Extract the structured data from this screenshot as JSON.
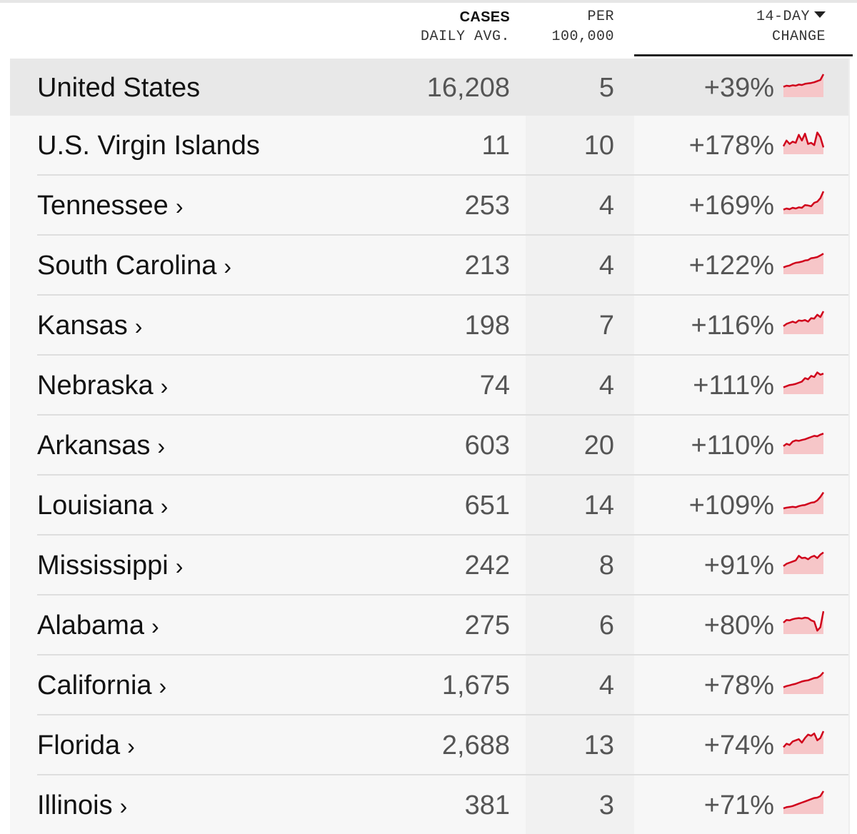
{
  "header": {
    "cases_line1": "CASES",
    "cases_line2": "DAILY AVG.",
    "per_line1": "PER",
    "per_line2": "100,000",
    "change_line1": "14-DAY",
    "change_line2": "CHANGE",
    "sort_icon": "caret-down-icon"
  },
  "colors": {
    "trend_line": "#d0021b",
    "trend_fill": "#f6c6c8",
    "highlight_row": "#e8e8e8",
    "table_bg": "#f7f7f7"
  },
  "rows": [
    {
      "name": "United States",
      "chevron": "",
      "cases": "16,208",
      "per": "5",
      "change": "+39%",
      "trend": [
        0.45,
        0.5,
        0.48,
        0.52,
        0.5,
        0.55,
        0.53,
        0.58,
        0.6,
        0.62,
        0.65,
        0.7,
        0.75,
        1.0
      ]
    },
    {
      "name": "U.S. Virgin Islands",
      "chevron": "",
      "cases": "11",
      "per": "10",
      "change": "+178%",
      "trend": [
        0.35,
        0.6,
        0.45,
        0.55,
        0.5,
        0.85,
        0.6,
        0.9,
        0.45,
        0.5,
        0.4,
        0.95,
        0.75,
        0.3
      ]
    },
    {
      "name": "Tennessee",
      "chevron": "›",
      "cases": "253",
      "per": "4",
      "change": "+169%",
      "trend": [
        0.2,
        0.25,
        0.22,
        0.28,
        0.25,
        0.3,
        0.28,
        0.4,
        0.38,
        0.35,
        0.5,
        0.55,
        0.7,
        1.0
      ]
    },
    {
      "name": "South Carolina",
      "chevron": "›",
      "cases": "213",
      "per": "4",
      "change": "+122%",
      "trend": [
        0.3,
        0.35,
        0.38,
        0.45,
        0.5,
        0.52,
        0.55,
        0.6,
        0.62,
        0.7,
        0.72,
        0.75,
        0.82,
        0.9
      ]
    },
    {
      "name": "Kansas",
      "chevron": "›",
      "cases": "198",
      "per": "7",
      "change": "+116%",
      "trend": [
        0.35,
        0.45,
        0.5,
        0.55,
        0.5,
        0.6,
        0.58,
        0.62,
        0.55,
        0.7,
        0.68,
        0.85,
        0.75,
        1.0
      ]
    },
    {
      "name": "Nebraska",
      "chevron": "›",
      "cases": "74",
      "per": "4",
      "change": "+111%",
      "trend": [
        0.3,
        0.35,
        0.4,
        0.42,
        0.45,
        0.5,
        0.55,
        0.7,
        0.65,
        0.8,
        0.75,
        0.95,
        0.85,
        0.9
      ]
    },
    {
      "name": "Arkansas",
      "chevron": "›",
      "cases": "603",
      "per": "20",
      "change": "+110%",
      "trend": [
        0.35,
        0.45,
        0.4,
        0.55,
        0.6,
        0.58,
        0.62,
        0.65,
        0.7,
        0.75,
        0.8,
        0.78,
        0.85,
        0.9
      ]
    },
    {
      "name": "Louisiana",
      "chevron": "›",
      "cases": "651",
      "per": "14",
      "change": "+109%",
      "trend": [
        0.25,
        0.28,
        0.3,
        0.32,
        0.3,
        0.35,
        0.38,
        0.4,
        0.45,
        0.5,
        0.52,
        0.6,
        0.75,
        0.95
      ]
    },
    {
      "name": "Mississippi",
      "chevron": "›",
      "cases": "242",
      "per": "8",
      "change": "+91%",
      "trend": [
        0.35,
        0.45,
        0.5,
        0.55,
        0.6,
        0.8,
        0.7,
        0.72,
        0.65,
        0.75,
        0.8,
        0.7,
        0.85,
        0.95
      ]
    },
    {
      "name": "Alabama",
      "chevron": "›",
      "cases": "275",
      "per": "6",
      "change": "+80%",
      "trend": [
        0.5,
        0.62,
        0.6,
        0.65,
        0.68,
        0.7,
        0.68,
        0.72,
        0.7,
        0.6,
        0.55,
        0.15,
        0.3,
        1.0
      ]
    },
    {
      "name": "California",
      "chevron": "›",
      "cases": "1,675",
      "per": "4",
      "change": "+78%",
      "trend": [
        0.3,
        0.35,
        0.38,
        0.42,
        0.45,
        0.5,
        0.55,
        0.58,
        0.6,
        0.65,
        0.7,
        0.72,
        0.8,
        0.95
      ]
    },
    {
      "name": "Florida",
      "chevron": "›",
      "cases": "2,688",
      "per": "13",
      "change": "+74%",
      "trend": [
        0.3,
        0.45,
        0.4,
        0.55,
        0.6,
        0.65,
        0.5,
        0.7,
        0.85,
        0.8,
        0.9,
        0.6,
        0.7,
        1.0
      ]
    },
    {
      "name": "Illinois",
      "chevron": "›",
      "cases": "381",
      "per": "3",
      "change": "+71%",
      "trend": [
        0.25,
        0.3,
        0.32,
        0.35,
        0.4,
        0.45,
        0.5,
        0.55,
        0.6,
        0.65,
        0.7,
        0.72,
        0.78,
        1.0
      ]
    }
  ]
}
